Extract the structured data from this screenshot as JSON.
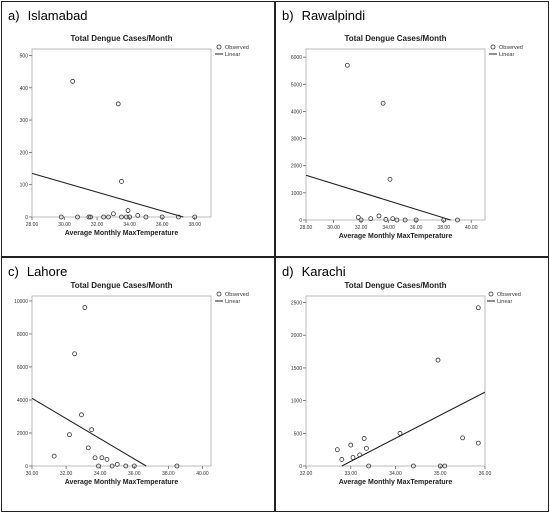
{
  "figure": {
    "caption": ""
  },
  "chart_data": [
    {
      "panel_letter": "a)",
      "city": "Islamabad",
      "type": "scatter",
      "title": "Total Dengue Cases/Month",
      "xlabel": "Average Monthly MaxTemperature",
      "ylabel": "",
      "xlim": [
        28,
        39
      ],
      "ylim": [
        0,
        520
      ],
      "xticks": [
        28,
        30,
        32,
        34,
        36,
        38
      ],
      "xtick_labels": [
        "28.00",
        "30.00",
        "32.00",
        "34.00",
        "36.00",
        "38.00"
      ],
      "yticks": [
        0,
        100,
        200,
        300,
        400,
        500
      ],
      "ytick_labels": [
        "0",
        "100",
        "200",
        "300",
        "400",
        "500"
      ],
      "legend": {
        "position": "top-right",
        "observed_label": "Observed",
        "linear_label": "Linear"
      },
      "grid": false,
      "points": {
        "x": [
          30.5,
          33.3,
          33.5,
          29.8,
          30.8,
          31.5,
          31.6,
          32.4,
          32.7,
          33.0,
          33.5,
          33.8,
          33.9,
          34.0,
          34.5,
          35.0,
          36.0,
          37.0,
          38.0
        ],
        "y": [
          420,
          350,
          110,
          0,
          0,
          0,
          0,
          0,
          0,
          10,
          0,
          0,
          20,
          0,
          5,
          0,
          0,
          0,
          0
        ]
      },
      "linear_fit": {
        "x": [
          28,
          37.3
        ],
        "y": [
          135,
          0
        ]
      }
    },
    {
      "panel_letter": "b)",
      "city": "Rawalpindi",
      "type": "scatter",
      "title": "Total Dengue Cases/Month",
      "xlabel": "Average Monthly MaxTemperature",
      "ylabel": "",
      "xlim": [
        28,
        41
      ],
      "ylim": [
        0,
        6300
      ],
      "xticks": [
        28,
        30,
        32,
        34,
        36,
        38,
        40
      ],
      "xtick_labels": [
        "28.00",
        "30.00",
        "32.00",
        "34.00",
        "36.00",
        "38.00",
        "40.00"
      ],
      "yticks": [
        0,
        1000,
        2000,
        3000,
        4000,
        5000,
        6000
      ],
      "ytick_labels": [
        "0",
        "1000",
        "2000",
        "3000",
        "4000",
        "5000",
        "6000"
      ],
      "legend": {
        "position": "top-right",
        "observed_label": "Observed",
        "linear_label": "Linear"
      },
      "grid": false,
      "points": {
        "x": [
          31.0,
          33.6,
          34.1,
          31.8,
          32.0,
          32.7,
          33.3,
          33.8,
          34.3,
          34.6,
          35.2,
          36.0,
          38.0,
          39.0
        ],
        "y": [
          5700,
          4300,
          1500,
          100,
          0,
          50,
          150,
          20,
          50,
          0,
          0,
          0,
          0,
          0
        ]
      },
      "linear_fit": {
        "x": [
          28,
          38.5
        ],
        "y": [
          1650,
          0
        ]
      }
    },
    {
      "panel_letter": "c)",
      "city": "Lahore",
      "type": "scatter",
      "title": "Total Dengue Cases/Month",
      "xlabel": "Average Monthly MaxTemperature",
      "ylabel": "",
      "xlim": [
        30,
        40.5
      ],
      "ylim": [
        0,
        10300
      ],
      "xticks": [
        30,
        32,
        34,
        36,
        38,
        40
      ],
      "xtick_labels": [
        "30.00",
        "32.00",
        "34.00",
        "36.00",
        "38.00",
        "40.00"
      ],
      "yticks": [
        0,
        2000,
        4000,
        6000,
        8000,
        10000
      ],
      "ytick_labels": [
        "0",
        "2000",
        "4000",
        "6000",
        "8000",
        "10000"
      ],
      "legend": {
        "position": "top-right",
        "observed_label": "Observed",
        "linear_label": "Linear"
      },
      "grid": false,
      "points": {
        "x": [
          33.1,
          32.5,
          32.9,
          33.5,
          33.3,
          32.2,
          31.3,
          33.7,
          34.1,
          34.4,
          33.9,
          34.7,
          35.0,
          35.5,
          36.0,
          38.5
        ],
        "y": [
          9600,
          6800,
          3100,
          2200,
          1100,
          1900,
          600,
          500,
          500,
          400,
          0,
          0,
          100,
          0,
          0,
          0
        ]
      },
      "linear_fit": {
        "x": [
          30,
          36.7
        ],
        "y": [
          4100,
          0
        ]
      }
    },
    {
      "panel_letter": "d)",
      "city": "Karachi",
      "type": "scatter",
      "title": "Total Dengue Cases/Month",
      "xlabel": "Average Monthly MaxTemperature",
      "ylabel": "",
      "xlim": [
        32,
        36
      ],
      "ylim": [
        0,
        2600
      ],
      "xticks": [
        32,
        33,
        34,
        35,
        36
      ],
      "xtick_labels": [
        "32.00",
        "33.00",
        "34.00",
        "35.00",
        "36.00"
      ],
      "yticks": [
        0,
        500,
        1000,
        1500,
        2000,
        2500
      ],
      "ytick_labels": [
        "0",
        "500",
        "1000",
        "1500",
        "2000",
        "2500"
      ],
      "legend": {
        "position": "top-left",
        "observed_label": "Observed",
        "linear_label": "Linear"
      },
      "grid": false,
      "points": {
        "x": [
          35.85,
          34.95,
          32.7,
          32.8,
          33.0,
          33.05,
          33.2,
          33.3,
          33.35,
          33.4,
          34.1,
          34.4,
          35.0,
          35.1,
          35.5,
          35.85
        ],
        "y": [
          2420,
          1620,
          250,
          100,
          320,
          130,
          170,
          420,
          270,
          0,
          500,
          0,
          0,
          0,
          430,
          350
        ]
      },
      "linear_fit": {
        "x": [
          32.8,
          36
        ],
        "y": [
          0,
          1130
        ]
      }
    }
  ]
}
